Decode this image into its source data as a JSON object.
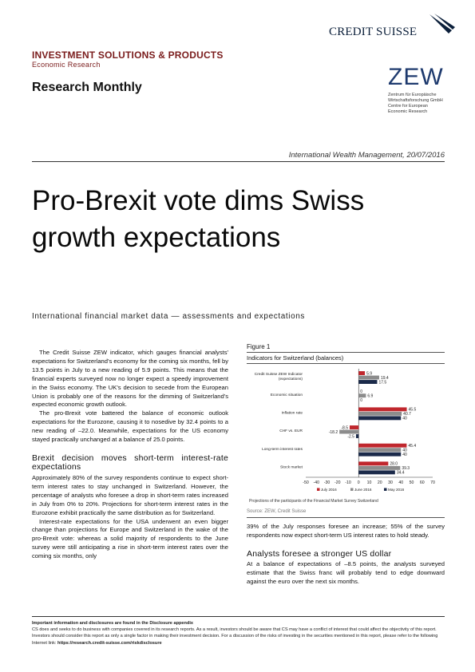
{
  "header": {
    "brand": "CREDIT SUISSE",
    "division": "INVESTMENT SOLUTIONS & PRODUCTS",
    "unit": "Economic Research",
    "publication": "Research Monthly",
    "partner": {
      "name": "ZEW",
      "sub": [
        "Zentrum für Europäische",
        "Wirtschaftsforschung GmbH",
        "Centre for European",
        "Economic Research"
      ]
    },
    "dateline": "International Wealth Management, 20/07/2016"
  },
  "headline": "Pro-Brexit vote dims Swiss growth expectations",
  "subtitle": "International financial market data — assessments and expectations",
  "left_column": {
    "p1": "The Credit Suisse ZEW indicator, which gauges financial analysts' expectations for Switzerland's economy for the coming six months, fell by 13.5 points in July to a new reading of 5.9 points. This means that the financial experts surveyed now no longer expect a speedy improvement in the Swiss economy. The UK's decision to secede from the European Union is probably one of the reasons for the dimming of Switzerland's expected economic growth outlook.",
    "p2": "The pro-Brexit vote battered the balance of economic outlook expectations for the Eurozone, causing it to nosedive by 32.4 points to a new reading of –22.0. Meanwhile, expectations for the US economy stayed practically unchanged at a balance of 25.0 points.",
    "h2": "Brexit decision moves short-term interest-rate expectations",
    "p3": "Approximately 80% of the survey respondents continue to expect short-term interest rates to stay unchanged in Switzerland. However, the percentage of analysts who foresee a drop in short-term rates increased in July from 0% to 20%. Projections for short-term interest rates in the Eurozone exhibit practically the same distribution as for Switzerland.",
    "p4": "Interest-rate expectations for the USA underwent an even bigger change than projections for Europe and Switzerland in the wake of the pro-Brexit vote: whereas a solid majority of respondents to the June survey were still anticipating a rise in short-term interest rates over the coming six months, only"
  },
  "figure": {
    "label": "Figure 1",
    "title": "Indicators for Switzerland (balances)",
    "note": "Projections of the participants of the Financial Market Survey Switzerland",
    "source": "Source: ZEW, Credit Suisse"
  },
  "chart_data": {
    "type": "bar",
    "orientation": "horizontal",
    "categories": [
      "Credit Suisse ZEW Indicator (expectations)",
      "Economic situation",
      "Inflation rate",
      "CHF vs. EUR",
      "Long-term interest rates",
      "Stock market"
    ],
    "series": [
      {
        "name": "July 2016",
        "values": [
          5.9,
          0,
          45.5,
          -8.5,
          45.4,
          28.0
        ],
        "color": "#c0272d"
      },
      {
        "name": "June 2016",
        "values": [
          19.4,
          6.9,
          40.7,
          -18.2,
          40,
          39.3
        ],
        "color": "#8c8c8c"
      },
      {
        "name": "May 2016",
        "values": [
          17.5,
          0,
          40,
          -2.5,
          40,
          34.4
        ],
        "color": "#1b2a4a"
      }
    ],
    "data_labels": [
      [
        "5.9",
        "19.4",
        "17.5"
      ],
      [
        "0",
        "6.9",
        "0"
      ],
      [
        "45.5",
        "40.7",
        "40"
      ],
      [
        "-8.5",
        "-18.2",
        "-2.5"
      ],
      [
        "45.4",
        "40",
        "40"
      ],
      [
        "28.0",
        "39.3",
        "34.4"
      ]
    ],
    "xlim": [
      -50,
      70
    ],
    "xticks": [
      -50,
      -40,
      -30,
      -20,
      -10,
      0,
      10,
      20,
      30,
      40,
      50,
      60,
      70
    ],
    "legend_position": "bottom"
  },
  "right_column": {
    "p1": "39% of the July responses foresee an increase; 55% of the survey respondents now expect short-term US interest rates to hold steady.",
    "h2": "Analysts foresee a stronger US dollar",
    "p2": "At a balance of expectations of –8.5 points, the analysts surveyed estimate that the Swiss franc will probably tend to edge downward against the euro over the next six months."
  },
  "footer": {
    "bold": "Important information and disclosures are found in the Disclosure appendix",
    "text": "CS does and seeks to do business with companies covered in its research reports. As a result, investors should be aware that CS may have a conflict of interest that could affect the objectivity of this report. Investors should consider this report as only a single factor in making their investment decision. For a discussion of the risks of investing in the securities mentioned in this report, please refer to the following Internet link:",
    "link": "https://research.credit-suisse.com/riskdisclosure"
  }
}
